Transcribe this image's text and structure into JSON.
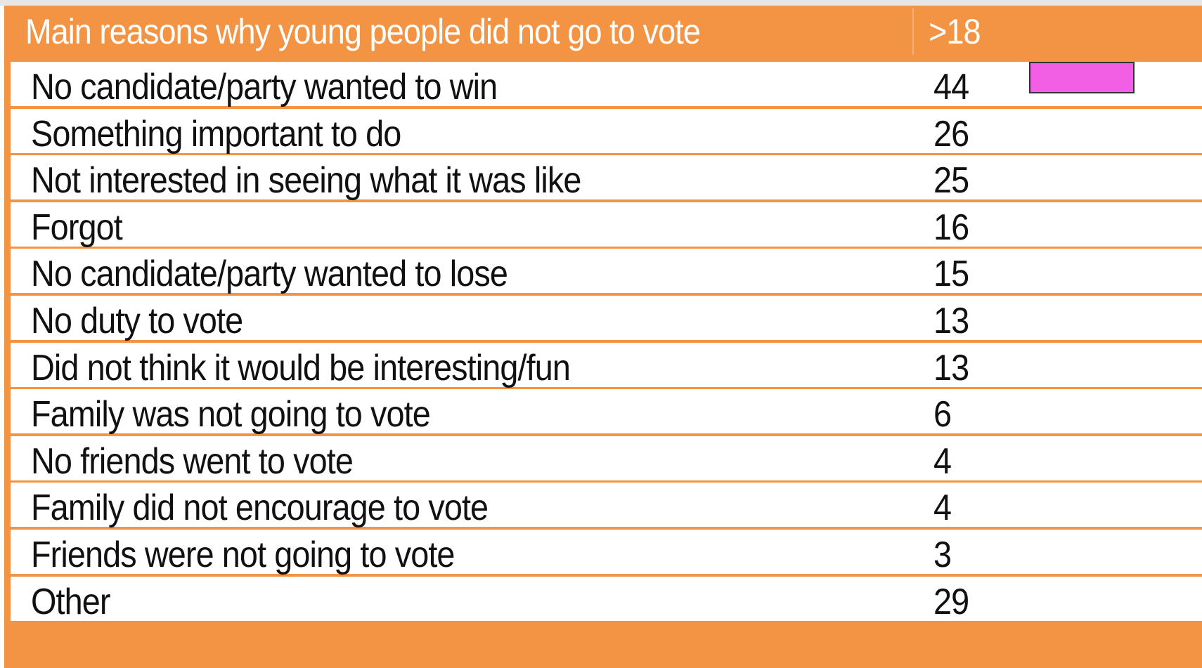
{
  "colors": {
    "header_bg": "#f39445",
    "row_bg": "#ffffff",
    "legend_swatch": "#f25fe5"
  },
  "chart_data": {
    "type": "table",
    "columns": [
      "Main reasons why young people did not go to vote",
      ">18"
    ],
    "rows": [
      {
        "label": "No candidate/party wanted to win",
        "value": "44"
      },
      {
        "label": "Something important to do",
        "value": "26"
      },
      {
        "label": "Not interested in seeing what it was like",
        "value": "25"
      },
      {
        "label": "Forgot",
        "value": "16"
      },
      {
        "label": "No candidate/party wanted to lose",
        "value": "15"
      },
      {
        "label": "No duty to vote",
        "value": "13"
      },
      {
        "label": "Did not think it would be interesting/fun",
        "value": "13"
      },
      {
        "label": "Family was not going to vote",
        "value": "6"
      },
      {
        "label": "No friends went to vote",
        "value": "4"
      },
      {
        "label": "Family did not encourage to vote",
        "value": "4"
      },
      {
        "label": "Friends were not going to vote",
        "value": "3"
      },
      {
        "label": "Other",
        "value": "29"
      }
    ]
  }
}
